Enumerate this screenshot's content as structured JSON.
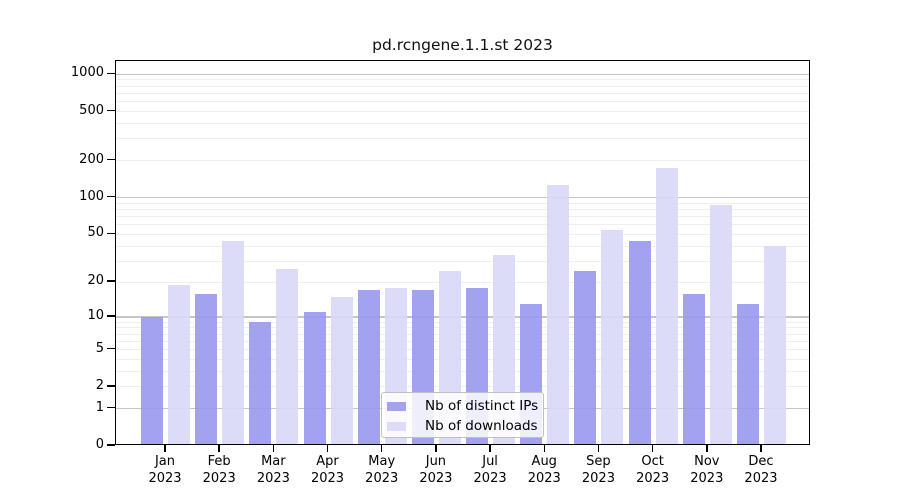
{
  "chart_data": {
    "type": "bar",
    "title": "pd.rcngene.1.1.st 2023",
    "year_label": "2023",
    "categories": [
      "Jan",
      "Feb",
      "Mar",
      "Apr",
      "May",
      "Jun",
      "Jul",
      "Aug",
      "Sep",
      "Oct",
      "Nov",
      "Dec"
    ],
    "series": [
      {
        "name": "Nb of distinct IPs",
        "color": "#9898ef",
        "values": [
          10,
          16,
          9,
          11,
          17,
          17,
          18,
          13,
          25,
          44,
          16,
          13
        ]
      },
      {
        "name": "Nb of downloads",
        "color": "#d8d8f8",
        "values": [
          19,
          44,
          26,
          15,
          18,
          25,
          34,
          128,
          54,
          174,
          88,
          40
        ]
      }
    ],
    "y_axis": {
      "scale": "log1p",
      "tick_values": [
        1000,
        500,
        200,
        100,
        50,
        20,
        10,
        5,
        2,
        1,
        0
      ],
      "major_gridlines": [
        1,
        10,
        100,
        1000
      ],
      "minor_gridlines": [
        2,
        3,
        4,
        5,
        6,
        7,
        8,
        9,
        20,
        30,
        40,
        50,
        60,
        70,
        80,
        90,
        200,
        300,
        400,
        500,
        600,
        700,
        800,
        900
      ],
      "ylim_top": 1283
    },
    "legend": {
      "entries": [
        "Nb of distinct IPs",
        "Nb of downloads"
      ],
      "position": "bottom-center"
    },
    "grid": true,
    "colors": {
      "ips_bar": "#9898ef",
      "downloads_bar": "#d8d8f8",
      "major_grid": "#c6c6c6",
      "minor_grid": "#efefef",
      "axis": "#000000",
      "background": "#ffffff"
    }
  }
}
